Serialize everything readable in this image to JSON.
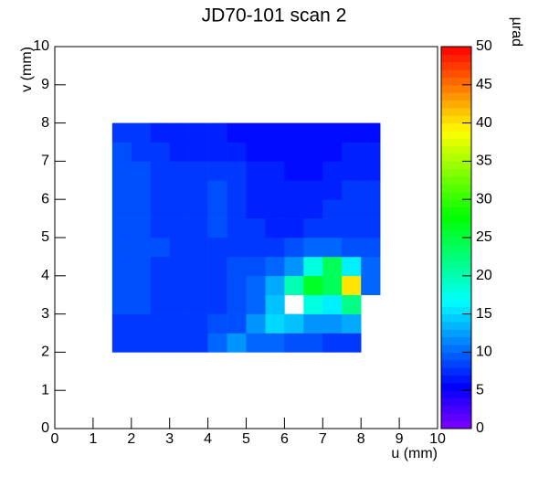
{
  "chart_data": {
    "type": "heatmap",
    "title": "JD70-101 scan 2",
    "x_label": "u (mm)",
    "y_label": "v (mm)",
    "z_label": "µrad",
    "xlim": [
      0,
      10
    ],
    "ylim": [
      0,
      10
    ],
    "zlim": [
      0,
      50
    ],
    "xticks": [
      0,
      1,
      2,
      3,
      4,
      5,
      6,
      7,
      8,
      9,
      10
    ],
    "yticks": [
      0,
      1,
      2,
      3,
      4,
      5,
      6,
      7,
      8,
      9,
      10
    ],
    "zticks": [
      0,
      5,
      10,
      15,
      20,
      25,
      30,
      35,
      40,
      45,
      50
    ],
    "colormap": "rainbow",
    "xbins": [
      1.5,
      2,
      2.5,
      3,
      3.5,
      4,
      4.5,
      5,
      5.5,
      6,
      6.5,
      7,
      7.5,
      8,
      8.5,
      9
    ],
    "ybins": [
      2,
      2.5,
      3,
      3.5,
      4,
      4.5,
      5,
      5.5,
      6,
      6.5,
      7,
      7.5,
      8
    ],
    "z": [
      [
        8,
        8,
        8,
        8,
        8,
        10,
        12,
        10,
        10,
        9,
        9,
        8,
        8,
        null,
        null
      ],
      [
        8,
        8,
        8,
        8,
        8,
        9,
        9,
        12,
        15,
        14,
        12,
        12,
        13,
        null,
        null
      ],
      [
        9,
        9,
        8,
        8,
        8,
        8,
        9,
        10,
        14,
        null,
        18,
        16,
        22,
        null,
        null
      ],
      [
        9,
        9,
        8,
        8,
        8,
        8,
        9,
        10,
        13,
        20,
        26,
        24,
        40,
        10,
        null
      ],
      [
        9,
        9,
        8,
        8,
        8,
        8,
        9,
        9,
        10,
        12,
        18,
        24,
        16,
        10,
        null
      ],
      [
        9,
        9,
        9,
        8,
        8,
        8,
        8,
        8,
        8,
        9,
        10,
        10,
        9,
        9,
        null
      ],
      [
        9,
        9,
        8,
        8,
        8,
        9,
        8,
        8,
        7,
        7,
        8,
        8,
        8,
        8,
        null
      ],
      [
        9,
        9,
        8,
        8,
        8,
        9,
        8,
        7,
        7,
        7,
        7,
        8,
        8,
        8,
        null
      ],
      [
        9,
        9,
        8,
        8,
        8,
        9,
        8,
        7,
        7,
        7,
        7,
        7,
        8,
        8,
        null
      ],
      [
        9,
        9,
        8,
        8,
        8,
        8,
        8,
        7,
        7,
        6,
        6,
        7,
        7,
        7,
        null
      ],
      [
        9,
        8,
        8,
        7,
        7,
        7,
        7,
        6,
        6,
        6,
        6,
        6,
        7,
        7,
        null
      ],
      [
        8,
        8,
        7,
        7,
        7,
        7,
        6,
        6,
        6,
        6,
        6,
        6,
        6,
        6,
        null
      ]
    ]
  }
}
